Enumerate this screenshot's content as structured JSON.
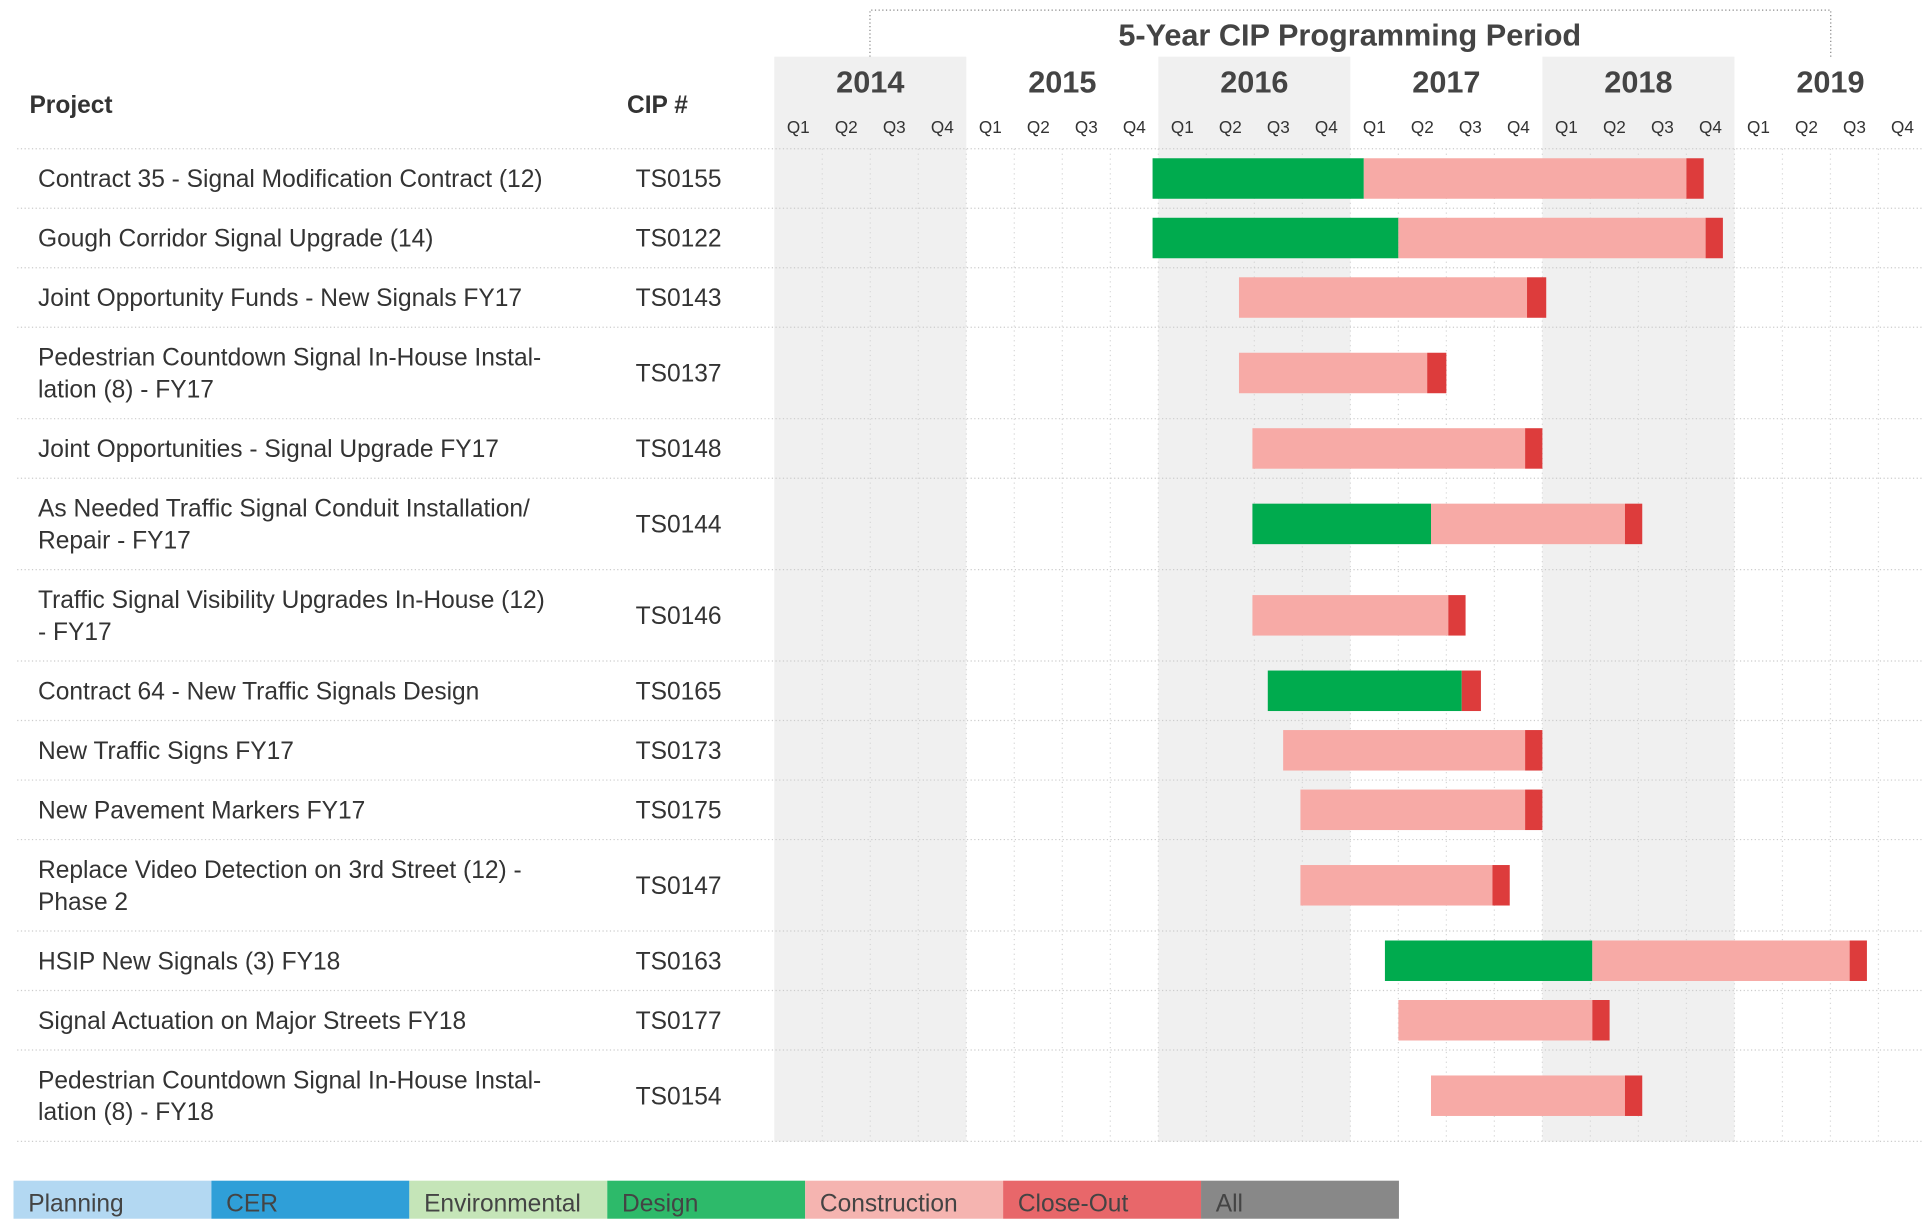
{
  "chart_data": {
    "type": "gantt",
    "title": "5-Year CIP Programming Period",
    "columns": [
      "Project",
      "CIP #"
    ],
    "xlim": [
      2014,
      2020
    ],
    "xticks": [
      2014,
      2015,
      2016,
      2017,
      2018,
      2019
    ],
    "quarters": [
      "Q1",
      "Q2",
      "Q3",
      "Q4"
    ],
    "rows": [
      {
        "project": [
          "Contract 35 - Signal Modification Contract (12)"
        ],
        "cip": "TS0155"
      },
      {
        "project": [
          "Gough Corridor Signal Upgrade (14)"
        ],
        "cip": "TS0122"
      },
      {
        "project": [
          "Joint Opportunity Funds - New Signals FY17"
        ],
        "cip": "TS0143"
      },
      {
        "project": [
          "Pedestrian Countdown Signal In-House Instal-",
          "lation (8) - FY17"
        ],
        "cip": "TS0137"
      },
      {
        "project": [
          "Joint Opportunities - Signal Upgrade FY17"
        ],
        "cip": "TS0148"
      },
      {
        "project": [
          "As Needed Traffic Signal Conduit Installation/",
          "Repair - FY17"
        ],
        "cip": "TS0144"
      },
      {
        "project": [
          "Traffic Signal Visibility Upgrades In-House (12)",
          "- FY17"
        ],
        "cip": "TS0146"
      },
      {
        "project": [
          "Contract 64 - New Traffic Signals Design"
        ],
        "cip": "TS0165"
      },
      {
        "project": [
          "New Traffic Signs FY17"
        ],
        "cip": "TS0173"
      },
      {
        "project": [
          "New Pavement Markers FY17"
        ],
        "cip": "TS0175"
      },
      {
        "project": [
          "Replace Video Detection on 3rd Street (12) -",
          "Phase 2"
        ],
        "cip": "TS0147"
      },
      {
        "project": [
          "HSIP New Signals (3) FY18"
        ],
        "cip": "TS0163"
      },
      {
        "project": [
          "Signal Actuation on Major Streets FY18"
        ],
        "cip": "TS0177"
      },
      {
        "project": [
          "Pedestrian Countdown Signal In-House Instal-",
          "lation (8) - FY18"
        ],
        "cip": "TS0154"
      }
    ],
    "series": [
      {
        "name": "Planning",
        "color": "#9fcdee",
        "legend_color": "#b3d8f2",
        "values": [
          null,
          null,
          null,
          null,
          null,
          null,
          null,
          null,
          null,
          null,
          null,
          null,
          null,
          null
        ]
      },
      {
        "name": "CER",
        "color": "#2f9fd8",
        "legend_color": "#2f9fd8",
        "values": [
          null,
          null,
          null,
          null,
          null,
          null,
          null,
          null,
          null,
          null,
          null,
          null,
          null,
          null
        ]
      },
      {
        "name": "Environmental",
        "color": "#b5dca4",
        "legend_color": "#c5e5b8",
        "values": [
          null,
          null,
          null,
          null,
          null,
          null,
          null,
          null,
          null,
          null,
          null,
          null,
          null,
          null
        ]
      },
      {
        "name": "Design",
        "color": "#00ab4e",
        "legend_color": "#2dba6a",
        "values": [
          [
            2015.97,
            2017.07
          ],
          [
            2015.97,
            2017.25
          ],
          null,
          null,
          null,
          [
            2016.49,
            2017.42
          ],
          null,
          [
            2016.57,
            2017.58
          ],
          null,
          null,
          null,
          [
            2017.18,
            2018.26
          ],
          null,
          null
        ]
      },
      {
        "name": "Construction",
        "color": "#f7aaa6",
        "legend_color": "#f5b4b0",
        "values": [
          [
            2017.07,
            2018.75
          ],
          [
            2017.25,
            2018.85
          ],
          [
            2016.42,
            2017.92
          ],
          [
            2016.42,
            2017.4
          ],
          [
            2016.49,
            2017.91
          ],
          [
            2017.42,
            2018.43
          ],
          [
            2016.49,
            2017.51
          ],
          null,
          [
            2016.65,
            2017.91
          ],
          [
            2016.74,
            2017.91
          ],
          [
            2016.74,
            2017.74
          ],
          [
            2018.26,
            2019.6
          ],
          [
            2017.25,
            2018.26
          ],
          [
            2017.42,
            2018.43
          ]
        ]
      },
      {
        "name": "Close-Out",
        "color": "#dd3c3c",
        "legend_color": "#e8676a",
        "values": [
          [
            2018.75,
            2018.84
          ],
          [
            2018.85,
            2018.94
          ],
          [
            2017.92,
            2018.02
          ],
          [
            2017.4,
            2017.5
          ],
          [
            2017.91,
            2018.0
          ],
          [
            2018.43,
            2018.52
          ],
          [
            2017.51,
            2017.6
          ],
          [
            2017.58,
            2017.68
          ],
          [
            2017.91,
            2018.0
          ],
          [
            2017.91,
            2018.0
          ],
          [
            2017.74,
            2017.83
          ],
          [
            2019.6,
            2019.69
          ],
          [
            2018.26,
            2018.35
          ],
          [
            2018.43,
            2018.52
          ]
        ]
      },
      {
        "name": "All",
        "color": "#888888",
        "legend_color": "#888888",
        "values": [
          null,
          null,
          null,
          null,
          null,
          null,
          null,
          null,
          null,
          null,
          null,
          null,
          null,
          null
        ]
      }
    ]
  }
}
